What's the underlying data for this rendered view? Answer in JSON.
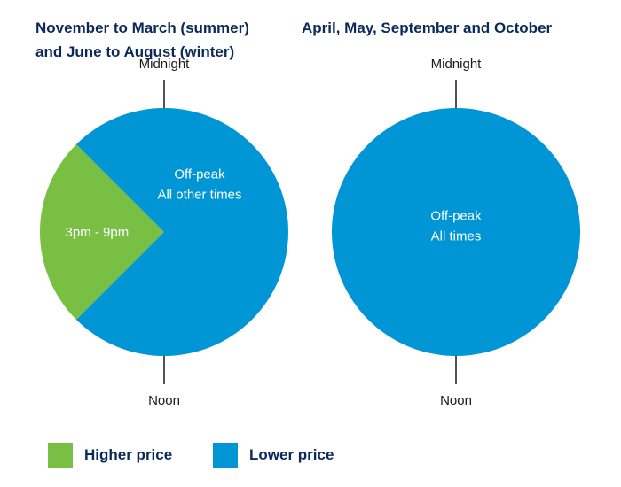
{
  "colors": {
    "higher": "#78bf44",
    "lower": "#0096d6",
    "text_dark": "#0b2a5b",
    "text_label": "#1a1a1a"
  },
  "chart_data": [
    {
      "type": "pie",
      "title_lines": [
        "November to March (summer)",
        "and June to August (winter)"
      ],
      "top_label": "Midnight",
      "bottom_label": "Noon",
      "slices": [
        {
          "label_lines": [
            "3pm - 9pm"
          ],
          "start_hour": 15,
          "end_hour": 21,
          "category": "higher"
        },
        {
          "label_lines": [
            "Off-peak",
            "All other times"
          ],
          "start_hour": 21,
          "end_hour": 39,
          "category": "lower"
        }
      ]
    },
    {
      "type": "pie",
      "title_lines": [
        "April, May, September and October"
      ],
      "top_label": "Midnight",
      "bottom_label": "Noon",
      "slices": [
        {
          "label_lines": [
            "Off-peak",
            "All  times"
          ],
          "start_hour": 0,
          "end_hour": 24,
          "category": "lower"
        }
      ]
    }
  ],
  "legend": [
    {
      "label": "Higher price",
      "category": "higher"
    },
    {
      "label": "Lower price",
      "category": "lower"
    }
  ]
}
